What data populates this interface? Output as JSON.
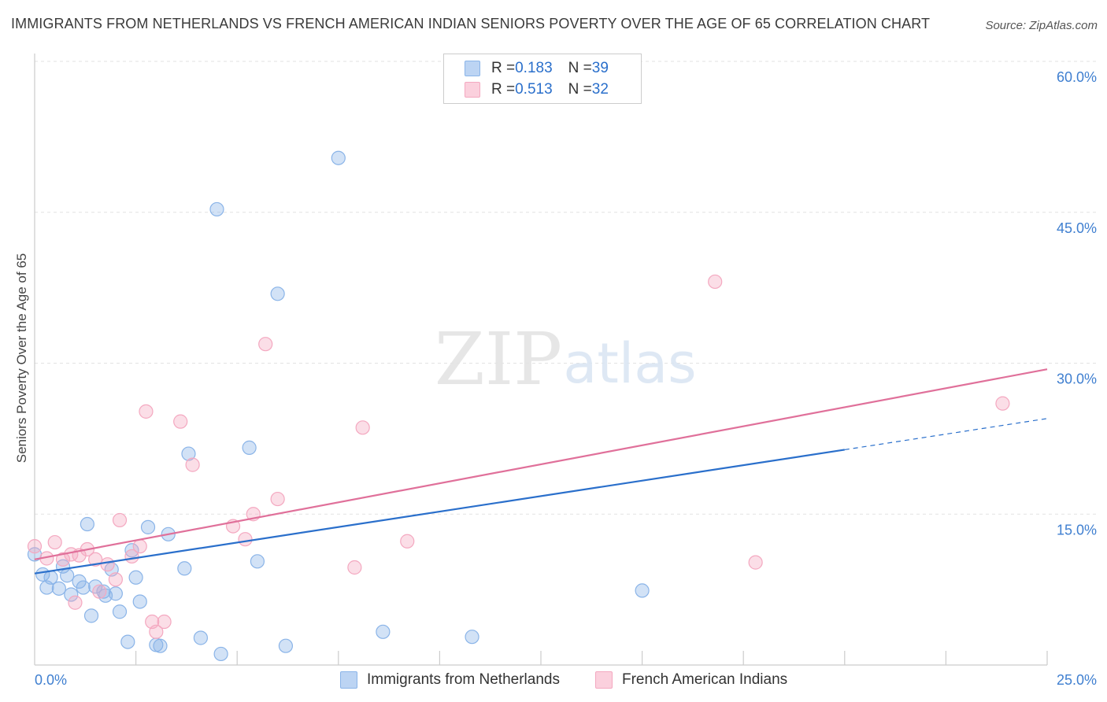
{
  "chart_data": {
    "type": "scatter",
    "title": "IMMIGRANTS FROM NETHERLANDS VS FRENCH AMERICAN INDIAN SENIORS POVERTY OVER THE AGE OF 65 CORRELATION CHART",
    "source": "Source: ZipAtlas.com",
    "ylabel": "Seniors Poverty Over the Age of 65",
    "xlabel": "",
    "xlim": [
      0,
      25
    ],
    "ylim": [
      0,
      60
    ],
    "x_tick_labels": [
      "0.0%",
      "25.0%"
    ],
    "y_ticks": [
      {
        "value": 60,
        "label": "60.0%"
      },
      {
        "value": 45,
        "label": "45.0%"
      },
      {
        "value": 30,
        "label": "30.0%"
      },
      {
        "value": 15,
        "label": "15.0%"
      }
    ],
    "watermark": {
      "part1": "ZIP",
      "part2": "atlas"
    },
    "legend": [
      {
        "r_label": "R = ",
        "r_value": "0.183",
        "n_label": "N = ",
        "n_value": "39"
      },
      {
        "r_label": "R = ",
        "r_value": "0.513",
        "n_label": "N = ",
        "n_value": "32"
      }
    ],
    "series": [
      {
        "name": "Immigrants from Netherlands",
        "color": "#8ab4e8",
        "line_color": "#2a6fcb",
        "trend": {
          "x0": 0.0,
          "y0": 9.1,
          "x1": 20.0,
          "y1": 21.4,
          "x_dash_end": 25.0,
          "y_dash_end": 24.5
        },
        "points": [
          [
            0.0,
            11.0
          ],
          [
            0.2,
            9.0
          ],
          [
            0.3,
            7.7
          ],
          [
            0.4,
            8.7
          ],
          [
            0.6,
            7.6
          ],
          [
            0.7,
            9.8
          ],
          [
            0.8,
            8.9
          ],
          [
            0.9,
            7.0
          ],
          [
            1.1,
            8.3
          ],
          [
            1.2,
            7.7
          ],
          [
            1.3,
            14.0
          ],
          [
            1.4,
            4.9
          ],
          [
            1.5,
            7.8
          ],
          [
            1.7,
            7.3
          ],
          [
            1.75,
            6.9
          ],
          [
            1.9,
            9.5
          ],
          [
            2.0,
            7.1
          ],
          [
            2.1,
            5.3
          ],
          [
            2.4,
            11.4
          ],
          [
            2.5,
            8.7
          ],
          [
            2.6,
            6.3
          ],
          [
            2.8,
            13.7
          ],
          [
            3.0,
            2.0
          ],
          [
            3.1,
            1.9
          ],
          [
            3.3,
            13.0
          ],
          [
            3.7,
            9.6
          ],
          [
            3.8,
            21.0
          ],
          [
            4.1,
            2.7
          ],
          [
            4.5,
            45.3
          ],
          [
            4.6,
            1.1
          ],
          [
            5.3,
            21.6
          ],
          [
            5.5,
            10.3
          ],
          [
            6.0,
            36.9
          ],
          [
            6.2,
            1.9
          ],
          [
            7.5,
            50.4
          ],
          [
            8.6,
            3.3
          ],
          [
            10.8,
            2.8
          ],
          [
            15.0,
            7.4
          ],
          [
            2.3,
            2.3
          ]
        ]
      },
      {
        "name": "French American Indians",
        "color": "#f4a8c0",
        "line_color": "#e0709a",
        "trend": {
          "x0": 0.0,
          "y0": 10.5,
          "x1": 25.0,
          "y1": 29.4
        },
        "points": [
          [
            0.0,
            11.8
          ],
          [
            0.3,
            10.6
          ],
          [
            0.5,
            12.2
          ],
          [
            0.7,
            10.5
          ],
          [
            0.9,
            11.0
          ],
          [
            1.0,
            6.2
          ],
          [
            1.1,
            10.9
          ],
          [
            1.3,
            11.5
          ],
          [
            1.5,
            10.5
          ],
          [
            1.6,
            7.3
          ],
          [
            1.8,
            10.0
          ],
          [
            2.0,
            8.5
          ],
          [
            2.1,
            14.4
          ],
          [
            2.4,
            10.8
          ],
          [
            2.6,
            11.8
          ],
          [
            2.75,
            25.2
          ],
          [
            2.9,
            4.3
          ],
          [
            3.0,
            3.3
          ],
          [
            3.2,
            4.3
          ],
          [
            3.6,
            24.2
          ],
          [
            3.9,
            19.9
          ],
          [
            4.9,
            13.8
          ],
          [
            5.2,
            12.5
          ],
          [
            5.4,
            15.0
          ],
          [
            5.7,
            31.9
          ],
          [
            6.0,
            16.5
          ],
          [
            7.9,
            9.7
          ],
          [
            8.1,
            23.6
          ],
          [
            9.2,
            12.3
          ],
          [
            16.8,
            38.1
          ],
          [
            17.8,
            10.2
          ],
          [
            23.9,
            26.0
          ]
        ]
      }
    ]
  }
}
